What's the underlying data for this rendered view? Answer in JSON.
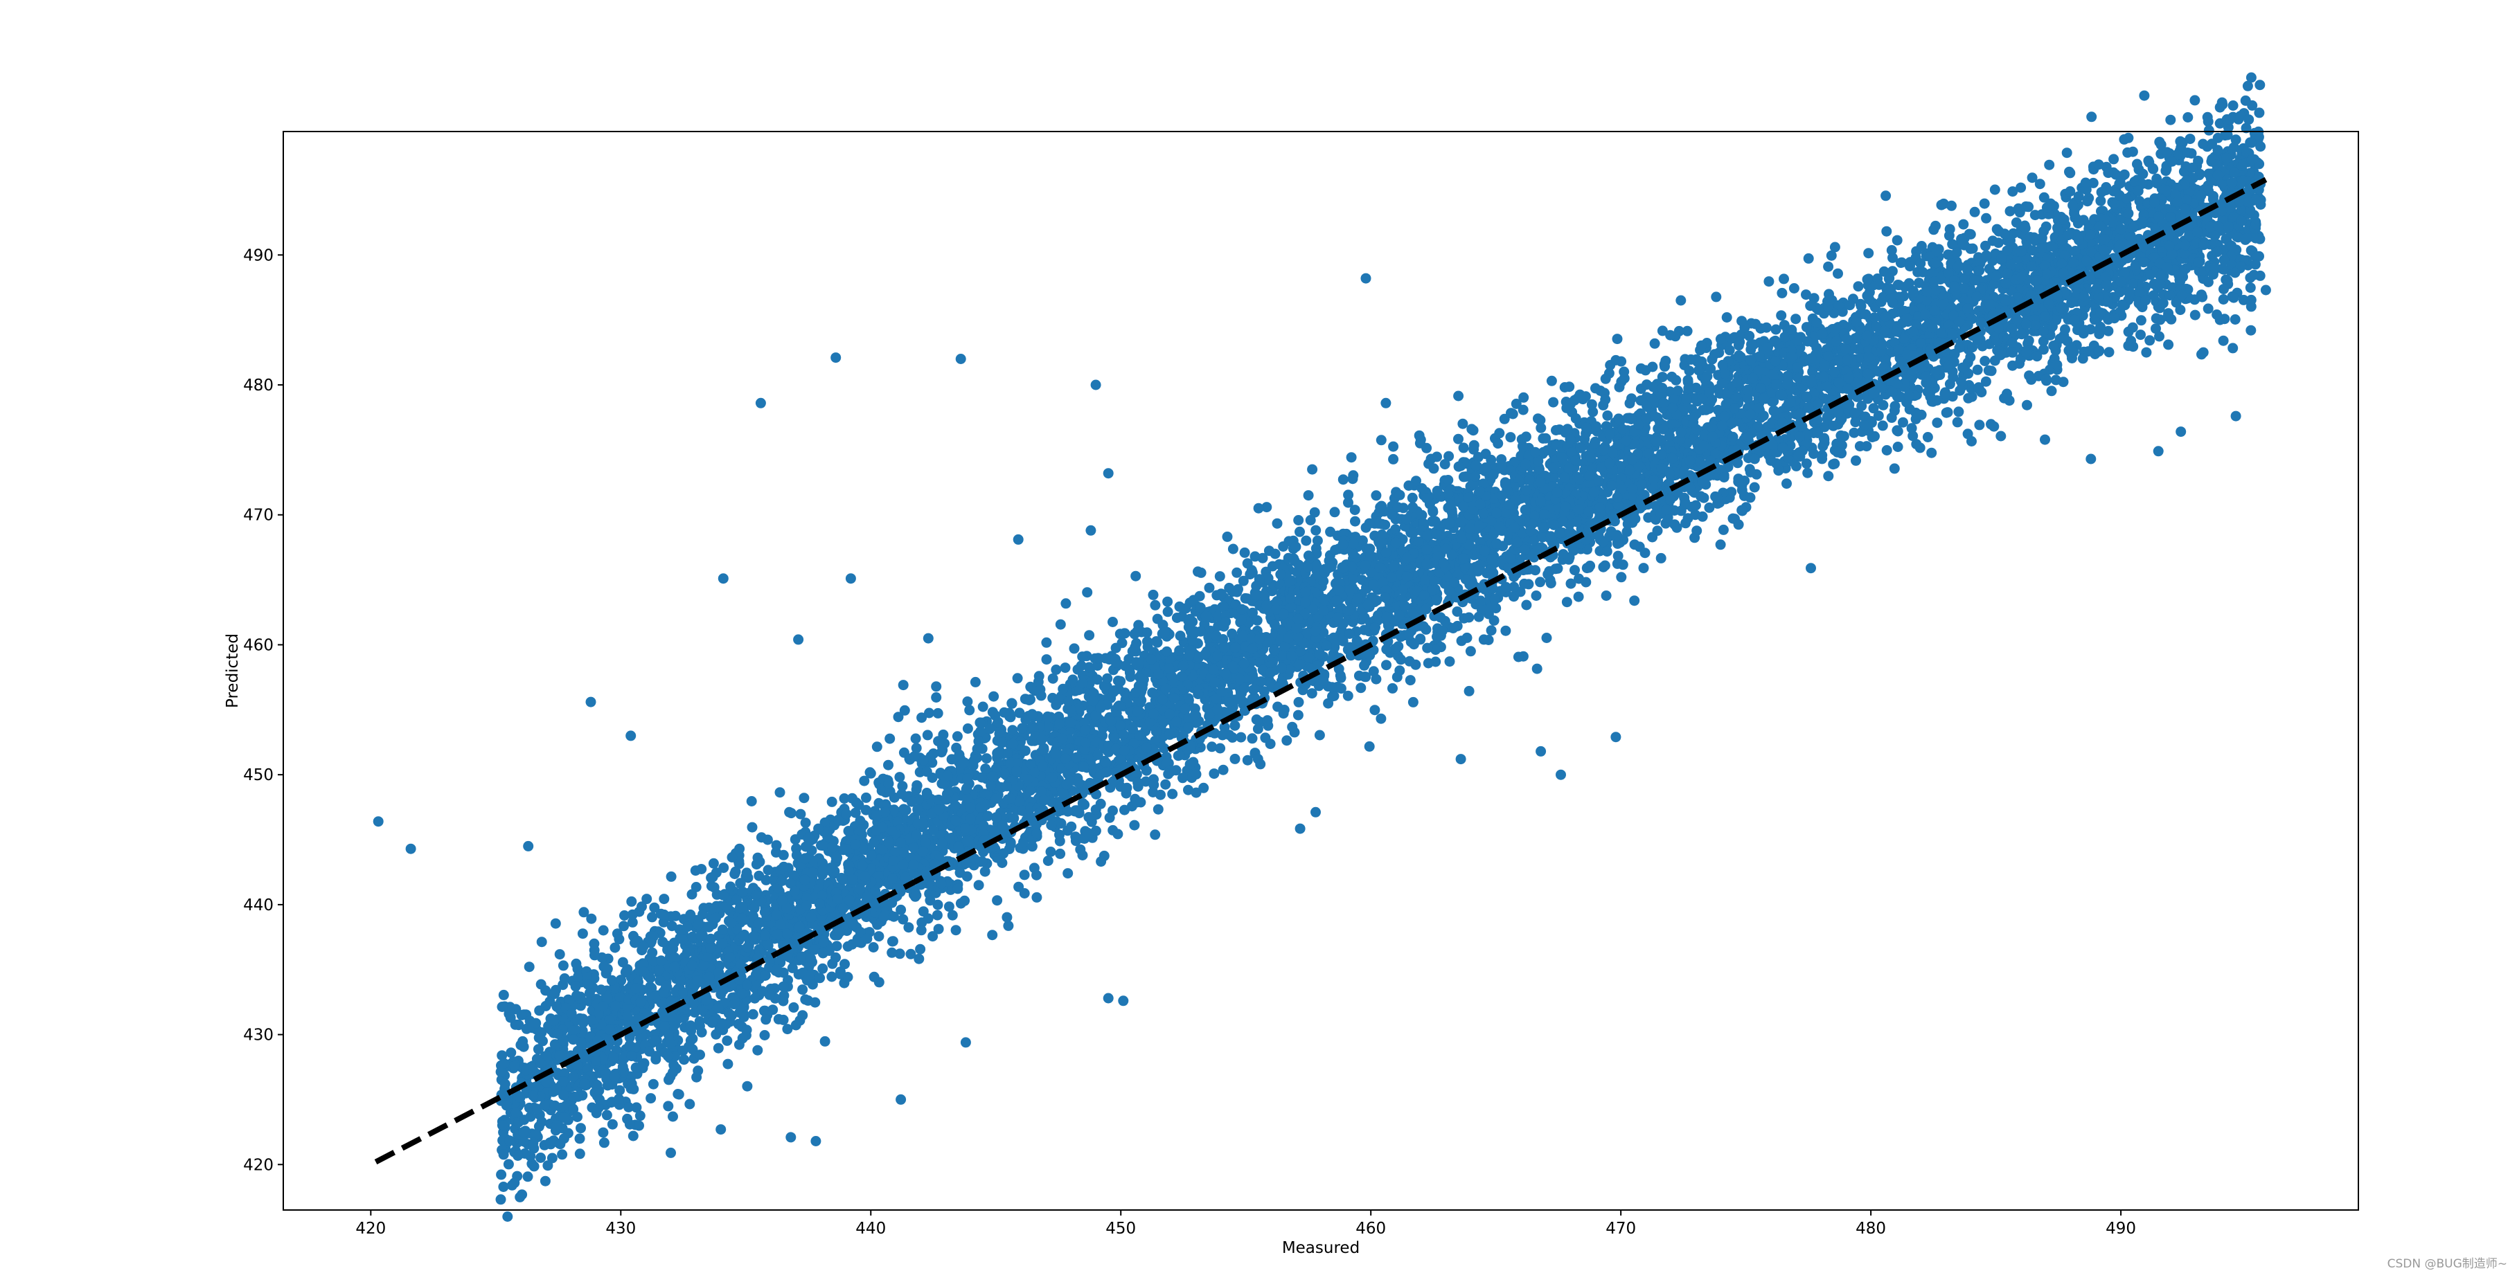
{
  "chart_data": {
    "type": "scatter",
    "title": "",
    "xlabel": "Measured",
    "ylabel": "Predicted",
    "xlim": [
      416.5,
      499.5
    ],
    "ylim": [
      416.5,
      499.5
    ],
    "xticks": [
      420,
      430,
      440,
      450,
      460,
      470,
      480,
      490
    ],
    "yticks": [
      420,
      430,
      440,
      450,
      460,
      470,
      480,
      490
    ],
    "xtick_labels": [
      "420",
      "430",
      "440",
      "450",
      "460",
      "470",
      "480",
      "490"
    ],
    "ytick_labels": [
      "420",
      "430",
      "440",
      "450",
      "460",
      "470",
      "480",
      "490"
    ],
    "grid": false,
    "point_color": "#1f77b4",
    "reference_line": {
      "style": "dashed",
      "color": "#000000",
      "x": [
        420.2,
        495.8
      ],
      "y": [
        420.2,
        495.8
      ]
    },
    "cloud_summary": {
      "approx_points": 9000,
      "x_range": [
        425,
        496
      ],
      "trend": "y approx equals x, spread about +/-6"
    },
    "series": [
      {
        "x": [
          420.3,
          421.6,
          426.3,
          428.8,
          430.4,
          434.1,
          435.6,
          437.1,
          438.6,
          439.2,
          441.3,
          442.3,
          443.6,
          445.9,
          448.8,
          449.0,
          449.5,
          459.8,
          460.6,
          463.6,
          466.8,
          467.6,
          469.8,
          469.8,
          472.4,
          477.6,
          481.2,
          482.6,
          490.2,
          490.3,
          428.4,
          430.5,
          432.0,
          434.0,
          436.8,
          437.8,
          441.2,
          443.8,
          449.5,
          450.1,
          488.8,
          491.5,
          493.3,
          494.6,
          495.2,
          495.8,
          494.1,
          492.4
        ],
        "y": [
          446.4,
          444.3,
          444.5,
          455.6,
          453.0,
          465.1,
          478.6,
          460.4,
          482.1,
          465.1,
          456.9,
          460.5,
          482.0,
          468.1,
          468.8,
          480.0,
          473.2,
          488.2,
          478.6,
          451.2,
          451.8,
          450.0,
          452.9,
          481.9,
          486.5,
          465.9,
          489.4,
          489.4,
          493.3,
          493.2,
          422.8,
          422.2,
          420.9,
          422.7,
          422.1,
          421.8,
          425.0,
          429.4,
          432.8,
          432.6,
          474.3,
          474.9,
          482.5,
          477.6,
          484.2,
          487.3,
          483.4,
          476.4
        ]
      }
    ]
  },
  "watermark": "CSDN @BUG制造师~"
}
